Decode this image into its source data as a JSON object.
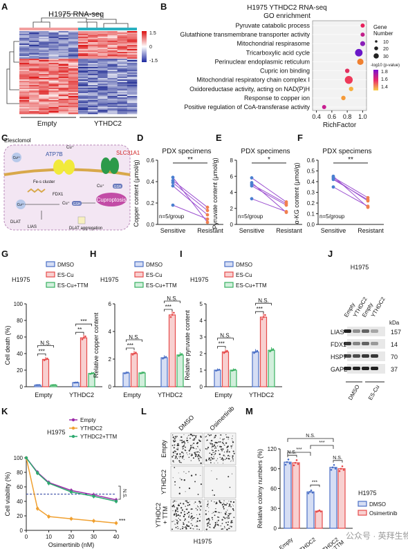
{
  "panels": {
    "A": {
      "letter": "A",
      "title": "H1975 RNA-seq",
      "scale_ticks": [
        "1.5",
        "0",
        "-1.5"
      ],
      "groups": [
        "Empty",
        "YTHDC2"
      ]
    },
    "B": {
      "letter": "B",
      "title": "H1975 YTHDC2 RNA-seq",
      "subtitle": "GO enrichment",
      "xlabel": "RichFactor",
      "xticks": [
        "0.4",
        "0.6",
        "0.8",
        "1.0"
      ],
      "size_legend_title": "Gene\nNumber",
      "size_legend": [
        "10",
        "20",
        "30"
      ],
      "color_legend_title": "-log10 (p-value)",
      "color_legend": [
        "1.8",
        "1.6",
        "1.4"
      ],
      "terms": [
        {
          "label": "Pyruvate catabolic process",
          "rich": 1.0,
          "count": 4,
          "color": "#e8205c"
        },
        {
          "label": "Glutathione transmembrane transporter activity",
          "rich": 1.0,
          "count": 4,
          "color": "#c21f8a"
        },
        {
          "label": "Mitochondrial respirasome",
          "rich": 1.0,
          "count": 7,
          "color": "#8a1fb8"
        },
        {
          "label": "Tricarboxylic acid cycle",
          "rich": 0.95,
          "count": 22,
          "color": "#6a18c8"
        },
        {
          "label": "Perinuclear endoplasmic reticulum",
          "rich": 0.97,
          "count": 14,
          "color": "#f08030"
        },
        {
          "label": "Cupric ion binding",
          "rich": 0.8,
          "count": 5,
          "color": "#e23060"
        },
        {
          "label": "Mitochondrial respiratory chain complex I",
          "rich": 0.82,
          "count": 25,
          "color": "#ee3a5a"
        },
        {
          "label": "Oxidoreductase activity, acting on NAD(P)H",
          "rich": 0.85,
          "count": 5,
          "color": "#f6b040"
        },
        {
          "label": "Response to copper ion",
          "rich": 0.75,
          "count": 5,
          "color": "#f59a38"
        },
        {
          "label": "Positive regulation of CoA-transferase activity",
          "rich": 0.5,
          "count": 4,
          "color": "#c81e90"
        }
      ]
    },
    "C": {
      "letter": "C",
      "labels": {
        "elesclomol": "Elesclomol",
        "atp7b": "ATP7B",
        "slc31a1": "SLC31A1",
        "cu2a": "Cu²⁺",
        "cu2b": "Cu²⁺",
        "cua": "Cu⁺",
        "cub": "Cu⁺",
        "cuc": "Cu⁺",
        "fes": "Fe-s cluster",
        "fdx1": "FDX1",
        "gsh1": "GSH",
        "gsh2": "GSH",
        "cuproptosis": "Cuproptosis",
        "dlat": "DLAT",
        "lias": "LIAS",
        "dlat_agg": "DLAT aggregation"
      }
    },
    "D": {
      "letter": "D",
      "title": "PDX specimens",
      "ylabel": "Copper content (μmol/g)",
      "yticks": [
        "0.0",
        "0.2",
        "0.4",
        "0.6"
      ],
      "ymax": 0.6,
      "sig": "**",
      "n": "n=5/group",
      "sensitive": [
        0.41,
        0.36,
        0.39,
        0.18,
        0.44
      ],
      "resistant": [
        0.16,
        0.09,
        0.13,
        0.05,
        0.02
      ],
      "xcats": [
        "Sensitive",
        "Resistant"
      ]
    },
    "E": {
      "letter": "E",
      "title": "PDX specimens",
      "ylabel": "Pyruvate content (μmol/g)",
      "yticks": [
        "0",
        "2",
        "4",
        "6",
        "8"
      ],
      "ymax": 8,
      "sig": "*",
      "n": "n=5/group",
      "sensitive": [
        5.8,
        4.8,
        5.0,
        3.2,
        5.2
      ],
      "resistant": [
        2.8,
        2.4,
        2.6,
        1.6,
        1.5
      ],
      "xcats": [
        "Sensitive",
        "Resistant"
      ]
    },
    "F": {
      "letter": "F",
      "title": "PDX specimens",
      "ylabel": "α-KG content (μmol/g)",
      "yticks": [
        "0.0",
        "0.1",
        "0.2",
        "0.3",
        "0.4",
        "0.5",
        "0.6"
      ],
      "ymax": 0.6,
      "sig": "**",
      "n": "n=5/group",
      "sensitive": [
        0.44,
        0.43,
        0.42,
        0.35,
        0.45
      ],
      "resistant": [
        0.25,
        0.22,
        0.23,
        0.17,
        0.16
      ],
      "xcats": [
        "Sensitive",
        "Resistant"
      ]
    },
    "G": {
      "letter": "G",
      "cell": "H1975",
      "ylabel": "Cell death (%)",
      "yticks": [
        "0",
        "20",
        "40",
        "60",
        "80",
        "100"
      ],
      "ymax": 100,
      "groups": [
        "Empty",
        "YTHDC2"
      ],
      "series": [
        {
          "name": "DMSO",
          "values": [
            2,
            5
          ]
        },
        {
          "name": "ES-Cu",
          "values": [
            33,
            59
          ]
        },
        {
          "name": "ES-Cu+TTM",
          "values": [
            2,
            16
          ]
        }
      ],
      "sig": [
        "N.S.",
        "***",
        "***",
        "**"
      ]
    },
    "H": {
      "letter": "H",
      "cell": "H1975",
      "ylabel": "Relative copper content",
      "yticks": [
        "0",
        "2",
        "4",
        "6"
      ],
      "ymax": 6,
      "groups": [
        "Empty",
        "YTHDC2"
      ],
      "series": [
        {
          "name": "DMSO",
          "values": [
            1.0,
            2.1
          ]
        },
        {
          "name": "ES-Cu",
          "values": [
            2.4,
            5.2
          ]
        },
        {
          "name": "ES-Cu+TTM",
          "values": [
            1.0,
            2.3
          ]
        }
      ],
      "sig": [
        "N.S.",
        "***",
        "N.S.",
        "***"
      ]
    },
    "I": {
      "letter": "I",
      "cell": "H1975",
      "ylabel": "Relative pyruvate content",
      "yticks": [
        "0",
        "1",
        "2",
        "3",
        "4",
        "5"
      ],
      "ymax": 5,
      "groups": [
        "Empty",
        "YTHDC2"
      ],
      "series": [
        {
          "name": "DMSO",
          "values": [
            1.0,
            2.1
          ]
        },
        {
          "name": "ES-Cu",
          "values": [
            2.1,
            4.2
          ]
        },
        {
          "name": "ES-Cu+TTM",
          "values": [
            1.0,
            2.2
          ]
        }
      ],
      "sig": [
        "N.S.",
        "***",
        "N.S.",
        "***"
      ]
    },
    "J": {
      "letter": "J",
      "cell": "H1975",
      "lanes": [
        "Empty",
        "YTHDC2",
        "Empty",
        "YTHDC2"
      ],
      "kda": "kDa",
      "proteins": [
        {
          "name": "LIAS",
          "kda": "157"
        },
        {
          "name": "FDX1",
          "kda": "14"
        },
        {
          "name": "HSP70",
          "kda": "70"
        },
        {
          "name": "GAPDH",
          "kda": "37"
        }
      ],
      "treat": [
        "DMSO",
        "ES-Cu"
      ]
    },
    "K": {
      "letter": "K",
      "cell": "H1975",
      "ylabel": "Cell viability (%)",
      "xlabel": "Osimertinib (nM)",
      "yticks": [
        "0",
        "20",
        "40",
        "60",
        "80",
        "100"
      ],
      "xticks": [
        "0",
        "10",
        "20",
        "30",
        "40"
      ],
      "x": [
        0,
        5,
        10,
        20,
        30,
        40
      ],
      "series": [
        {
          "name": "Empty",
          "color": "#9b2aa8",
          "values": [
            100,
            80,
            66,
            55,
            49,
            42
          ]
        },
        {
          "name": "YTHDC2",
          "color": "#f0a030",
          "values": [
            100,
            30,
            19,
            16,
            13,
            10
          ]
        },
        {
          "name": "YTHDC2+TTM",
          "color": "#2eaa70",
          "values": [
            100,
            79,
            65,
            53,
            47,
            40
          ]
        }
      ],
      "sig_ns": "N.S.",
      "sig": "***"
    },
    "L": {
      "letter": "L",
      "cols": [
        "DMSO",
        "Osimertinib"
      ],
      "rows": [
        "Empty",
        "YTHDC2",
        "YTHDC2\n+ TTM"
      ],
      "cell": "H1975"
    },
    "M": {
      "letter": "M",
      "cell": "H1975",
      "ylabel": "Relative colony numbers (%)",
      "yticks": [
        "0",
        "30",
        "60",
        "90",
        "120"
      ],
      "ymax": 120,
      "groups": [
        "Empty",
        "YTHDC2",
        "YTHDC2\n+TTM"
      ],
      "series": [
        {
          "name": "DMSO",
          "values": [
            100,
            55,
            92
          ]
        },
        {
          "name": "Osimertinib",
          "values": [
            99,
            26,
            90
          ]
        }
      ],
      "sig": [
        "N.S.",
        "***",
        "N.S.",
        "***",
        "N.S.",
        "***"
      ]
    }
  },
  "watermark": "公众号 · 英拜生物",
  "colors": {
    "blue": "#4a6fc6",
    "red": "#e64a4a",
    "green": "#38b060",
    "purple": "#9b4fd0",
    "pink": "#e8a0c0"
  }
}
